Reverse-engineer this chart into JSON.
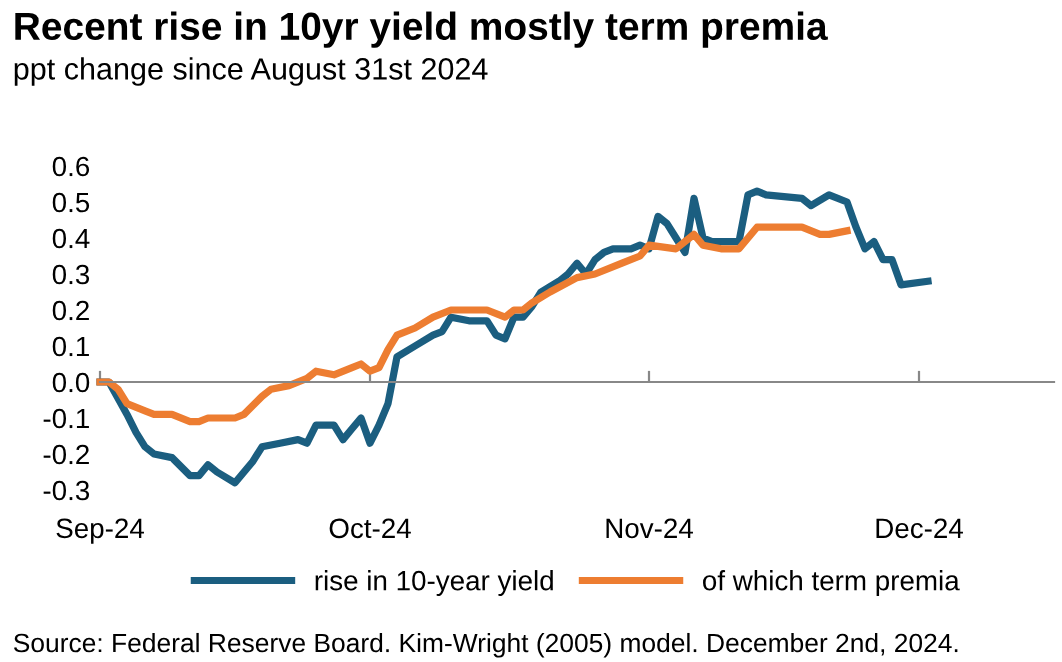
{
  "chart_data": {
    "type": "line",
    "title": "Recent rise in 10yr yield mostly term premia",
    "subtitle": "ppt change since August 31st 2024",
    "annotations": [
      "Source: Federal Reserve Board. Kim-Wright (2005) model. December 2nd, 2024."
    ],
    "series": [
      {
        "name": "rise in 10-year yield",
        "color": "#1b5e80",
        "x": [
          "2024-09-01",
          "2024-09-02",
          "2024-09-04",
          "2024-09-05",
          "2024-09-06",
          "2024-09-07",
          "2024-09-09",
          "2024-09-11",
          "2024-09-12",
          "2024-09-13",
          "2024-09-14",
          "2024-09-16",
          "2024-09-17",
          "2024-09-18",
          "2024-09-19",
          "2024-09-21",
          "2024-09-23",
          "2024-09-24",
          "2024-09-25",
          "2024-09-27",
          "2024-09-28",
          "2024-09-29",
          "2024-09-30",
          "2024-10-01",
          "2024-10-02",
          "2024-10-03",
          "2024-10-04",
          "2024-10-06",
          "2024-10-08",
          "2024-10-09",
          "2024-10-10",
          "2024-10-12",
          "2024-10-14",
          "2024-10-15",
          "2024-10-16",
          "2024-10-17",
          "2024-10-18",
          "2024-10-19",
          "2024-10-20",
          "2024-10-22",
          "2024-10-23",
          "2024-10-24",
          "2024-10-25",
          "2024-10-26",
          "2024-10-27",
          "2024-10-28",
          "2024-10-30",
          "2024-10-31",
          "2024-11-01",
          "2024-11-02",
          "2024-11-03",
          "2024-11-04",
          "2024-11-05",
          "2024-11-06",
          "2024-11-07",
          "2024-11-08",
          "2024-11-11",
          "2024-11-12",
          "2024-11-13",
          "2024-11-14",
          "2024-11-18",
          "2024-11-19",
          "2024-11-21",
          "2024-11-23",
          "2024-11-24",
          "2024-11-25",
          "2024-11-26",
          "2024-11-27",
          "2024-11-28",
          "2024-11-29",
          "2024-12-02"
        ],
        "values": [
          0,
          0,
          -0.09,
          -0.14,
          -0.18,
          -0.2,
          -0.21,
          -0.26,
          -0.26,
          -0.23,
          -0.25,
          -0.28,
          -0.25,
          -0.22,
          -0.18,
          -0.17,
          -0.16,
          -0.17,
          -0.12,
          -0.12,
          -0.16,
          -0.13,
          -0.1,
          -0.17,
          -0.12,
          -0.06,
          0.07,
          0.1,
          0.13,
          0.14,
          0.18,
          0.17,
          0.17,
          0.13,
          0.12,
          0.18,
          0.18,
          0.21,
          0.25,
          0.28,
          0.3,
          0.33,
          0.3,
          0.34,
          0.36,
          0.37,
          0.37,
          0.38,
          0.37,
          0.46,
          0.44,
          0.4,
          0.36,
          0.51,
          0.4,
          0.39,
          0.39,
          0.52,
          0.53,
          0.52,
          0.51,
          0.49,
          0.52,
          0.5,
          0.43,
          0.37,
          0.39,
          0.34,
          0.34,
          0.27,
          0.28
        ]
      },
      {
        "name": "of which term premia",
        "color": "#ed7d31",
        "x": [
          "2024-09-01",
          "2024-09-02",
          "2024-09-03",
          "2024-09-04",
          "2024-09-06",
          "2024-09-07",
          "2024-09-09",
          "2024-09-11",
          "2024-09-12",
          "2024-09-13",
          "2024-09-14",
          "2024-09-16",
          "2024-09-17",
          "2024-09-19",
          "2024-09-20",
          "2024-09-22",
          "2024-09-24",
          "2024-09-25",
          "2024-09-27",
          "2024-09-29",
          "2024-09-30",
          "2024-10-01",
          "2024-10-02",
          "2024-10-03",
          "2024-10-04",
          "2024-10-06",
          "2024-10-08",
          "2024-10-10",
          "2024-10-14",
          "2024-10-16",
          "2024-10-17",
          "2024-10-18",
          "2024-10-19",
          "2024-10-21",
          "2024-10-24",
          "2024-10-26",
          "2024-10-29",
          "2024-10-31",
          "2024-11-01",
          "2024-11-04",
          "2024-11-06",
          "2024-11-07",
          "2024-11-09",
          "2024-11-11",
          "2024-11-13",
          "2024-11-14",
          "2024-11-18",
          "2024-11-20",
          "2024-11-21",
          "2024-11-23"
        ],
        "values": [
          0,
          0,
          -0.02,
          -0.06,
          -0.08,
          -0.09,
          -0.09,
          -0.11,
          -0.11,
          -0.1,
          -0.1,
          -0.1,
          -0.09,
          -0.04,
          -0.02,
          -0.01,
          0.01,
          0.03,
          0.02,
          0.04,
          0.05,
          0.03,
          0.04,
          0.09,
          0.13,
          0.15,
          0.18,
          0.2,
          0.2,
          0.18,
          0.2,
          0.2,
          0.22,
          0.25,
          0.29,
          0.3,
          0.33,
          0.35,
          0.38,
          0.37,
          0.41,
          0.38,
          0.37,
          0.37,
          0.43,
          0.43,
          0.43,
          0.41,
          0.41,
          0.42
        ]
      }
    ],
    "xlim": [
      "2024-09-01",
      "2024-12-16"
    ],
    "xticks": [
      {
        "value": "2024-09-01",
        "label": "Sep-24"
      },
      {
        "value": "2024-10-01",
        "label": "Oct-24"
      },
      {
        "value": "2024-11-01",
        "label": "Nov-24"
      },
      {
        "value": "2024-12-01",
        "label": "Dec-24"
      }
    ],
    "ylim": [
      -0.3,
      0.6
    ],
    "yticks": [
      -0.3,
      -0.2,
      -0.1,
      {
        "value": 0,
        "label": "0.0"
      },
      0.1,
      0.2,
      0.3,
      0.4,
      0.5,
      0.6
    ],
    "legend": "bottom",
    "marker": "none",
    "line_style": "solid"
  }
}
